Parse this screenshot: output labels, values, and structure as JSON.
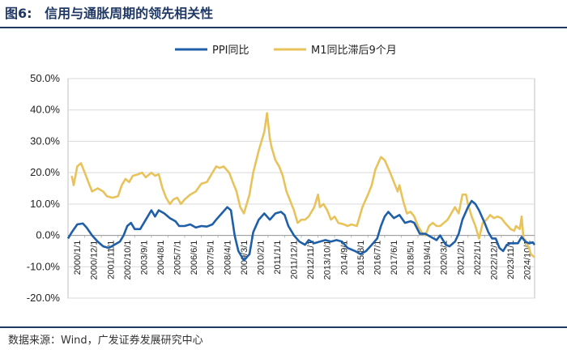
{
  "figure": {
    "number": "图6:",
    "title": "信用与通胀周期的领先相关性",
    "source": "数据来源：Wind，广发证券发展研究中心"
  },
  "colors": {
    "ppi": "#1f5fa8",
    "m1": "#e8c35c",
    "grid": "#d9d9d9",
    "axis": "#bfbfbf"
  },
  "chart_data": {
    "type": "line",
    "title": "信用与通胀周期的领先相关性",
    "ylim": [
      -20,
      50
    ],
    "yticks": [
      -20,
      -10,
      0,
      10,
      20,
      30,
      40,
      50
    ],
    "ytick_labels": [
      "-20.0%",
      "-10.0%",
      "0.0%",
      "10.0%",
      "20.0%",
      "30.0%",
      "40.0%",
      "50.0%"
    ],
    "x_range": [
      2000.0,
      2025.2
    ],
    "xtick_labels": [
      "2000/1/1",
      "2000/12/1",
      "2001/11/1",
      "2002/10/1",
      "2003/9/1",
      "2004/8/1",
      "2005/7/1",
      "2006/6/1",
      "2007/5/1",
      "2008/4/1",
      "2009/3/1",
      "2010/2/1",
      "2011/1/1",
      "2011/12/1",
      "2012/11/1",
      "2013/10/1",
      "2014/9/1",
      "2015/8/1",
      "2016/7/1",
      "2017/6/1",
      "2018/5/1",
      "2019/4/1",
      "2020/3/1",
      "2021/2/1",
      "2022/1/1",
      "2022/12/1",
      "2023/11/1",
      "2024/10/1"
    ],
    "legend": {
      "position": "top-center"
    },
    "series": [
      {
        "name": "PPI同比",
        "points": [
          [
            2000.0,
            -1
          ],
          [
            2000.2,
            1
          ],
          [
            2000.5,
            3.5
          ],
          [
            2000.8,
            3.8
          ],
          [
            2001.0,
            2.5
          ],
          [
            2001.3,
            0
          ],
          [
            2001.6,
            -2
          ],
          [
            2001.9,
            -3.5
          ],
          [
            2002.2,
            -4
          ],
          [
            2002.5,
            -3
          ],
          [
            2002.8,
            -2
          ],
          [
            2003.0,
            0
          ],
          [
            2003.2,
            3
          ],
          [
            2003.4,
            4
          ],
          [
            2003.6,
            2
          ],
          [
            2003.9,
            2
          ],
          [
            2004.2,
            5
          ],
          [
            2004.5,
            8
          ],
          [
            2004.7,
            6
          ],
          [
            2004.9,
            8
          ],
          [
            2005.2,
            7
          ],
          [
            2005.5,
            5.5
          ],
          [
            2005.8,
            4.5
          ],
          [
            2006.0,
            3
          ],
          [
            2006.3,
            3
          ],
          [
            2006.6,
            3.5
          ],
          [
            2006.9,
            2.5
          ],
          [
            2007.2,
            3
          ],
          [
            2007.5,
            2.8
          ],
          [
            2007.8,
            3.5
          ],
          [
            2008.0,
            5
          ],
          [
            2008.3,
            7
          ],
          [
            2008.6,
            9
          ],
          [
            2008.8,
            8
          ],
          [
            2009.0,
            0
          ],
          [
            2009.2,
            -5
          ],
          [
            2009.5,
            -8
          ],
          [
            2009.8,
            -6
          ],
          [
            2010.0,
            1
          ],
          [
            2010.3,
            5
          ],
          [
            2010.6,
            7
          ],
          [
            2010.9,
            5
          ],
          [
            2011.2,
            7
          ],
          [
            2011.5,
            7.5
          ],
          [
            2011.7,
            6.5
          ],
          [
            2011.9,
            3
          ],
          [
            2012.2,
            0
          ],
          [
            2012.5,
            -2
          ],
          [
            2012.8,
            -3
          ],
          [
            2013.0,
            -1.5
          ],
          [
            2013.3,
            -2.5
          ],
          [
            2013.6,
            -2
          ],
          [
            2013.9,
            -1.5
          ],
          [
            2014.2,
            -2
          ],
          [
            2014.5,
            -1.5
          ],
          [
            2014.8,
            -2
          ],
          [
            2015.1,
            -4
          ],
          [
            2015.5,
            -5
          ],
          [
            2015.8,
            -6
          ],
          [
            2016.1,
            -5
          ],
          [
            2016.4,
            -3
          ],
          [
            2016.7,
            -1
          ],
          [
            2016.9,
            3
          ],
          [
            2017.1,
            6
          ],
          [
            2017.3,
            7.5
          ],
          [
            2017.6,
            5.5
          ],
          [
            2017.9,
            6.5
          ],
          [
            2018.2,
            4
          ],
          [
            2018.5,
            4.5
          ],
          [
            2018.7,
            4
          ],
          [
            2019.0,
            0.5
          ],
          [
            2019.3,
            0.5
          ],
          [
            2019.6,
            -0.5
          ],
          [
            2019.9,
            -1.5
          ],
          [
            2020.1,
            0
          ],
          [
            2020.4,
            -3
          ],
          [
            2020.6,
            -3.5
          ],
          [
            2020.9,
            -2
          ],
          [
            2021.1,
            0.5
          ],
          [
            2021.3,
            5
          ],
          [
            2021.6,
            9
          ],
          [
            2021.8,
            11
          ],
          [
            2022.0,
            10
          ],
          [
            2022.2,
            8
          ],
          [
            2022.5,
            4
          ],
          [
            2022.7,
            1
          ],
          [
            2022.9,
            -1
          ],
          [
            2023.1,
            -1
          ],
          [
            2023.3,
            -4
          ],
          [
            2023.5,
            -5
          ],
          [
            2023.7,
            -3
          ],
          [
            2023.9,
            -2.5
          ],
          [
            2024.1,
            -2.5
          ],
          [
            2024.3,
            -2.5
          ],
          [
            2024.5,
            -0.5
          ],
          [
            2024.7,
            -2
          ],
          [
            2024.9,
            -2.5
          ],
          [
            2025.1,
            -2.2
          ],
          [
            2025.2,
            -3
          ]
        ]
      },
      {
        "name": "M1同比滞后9个月",
        "points": [
          [
            2000.2,
            19
          ],
          [
            2000.3,
            16
          ],
          [
            2000.5,
            22
          ],
          [
            2000.7,
            23
          ],
          [
            2000.9,
            20
          ],
          [
            2001.1,
            17
          ],
          [
            2001.3,
            14
          ],
          [
            2001.6,
            15
          ],
          [
            2001.9,
            14
          ],
          [
            2002.1,
            12.5
          ],
          [
            2002.4,
            12
          ],
          [
            2002.7,
            12.5
          ],
          [
            2002.9,
            16
          ],
          [
            2003.1,
            18
          ],
          [
            2003.3,
            17
          ],
          [
            2003.5,
            19
          ],
          [
            2003.8,
            19.5
          ],
          [
            2004.0,
            20
          ],
          [
            2004.2,
            18.5
          ],
          [
            2004.5,
            20
          ],
          [
            2004.7,
            19
          ],
          [
            2004.9,
            19.5
          ],
          [
            2005.1,
            15
          ],
          [
            2005.3,
            12
          ],
          [
            2005.5,
            10
          ],
          [
            2005.7,
            11.5
          ],
          [
            2005.9,
            12
          ],
          [
            2006.1,
            10
          ],
          [
            2006.3,
            11.5
          ],
          [
            2006.6,
            13
          ],
          [
            2006.9,
            14
          ],
          [
            2007.2,
            16.5
          ],
          [
            2007.5,
            17
          ],
          [
            2007.8,
            20
          ],
          [
            2008.0,
            22
          ],
          [
            2008.2,
            21.5
          ],
          [
            2008.4,
            22
          ],
          [
            2008.7,
            20
          ],
          [
            2008.9,
            17
          ],
          [
            2009.1,
            14
          ],
          [
            2009.3,
            9
          ],
          [
            2009.5,
            7
          ],
          [
            2009.8,
            13
          ],
          [
            2010.0,
            20
          ],
          [
            2010.3,
            27
          ],
          [
            2010.6,
            33
          ],
          [
            2010.75,
            39
          ],
          [
            2010.9,
            31
          ],
          [
            2011.0,
            28
          ],
          [
            2011.2,
            24
          ],
          [
            2011.4,
            22
          ],
          [
            2011.6,
            19
          ],
          [
            2011.8,
            14
          ],
          [
            2012.0,
            11
          ],
          [
            2012.2,
            8
          ],
          [
            2012.4,
            4
          ],
          [
            2012.6,
            5
          ],
          [
            2012.8,
            5
          ],
          [
            2013.0,
            6
          ],
          [
            2013.3,
            9
          ],
          [
            2013.5,
            13
          ],
          [
            2013.6,
            9
          ],
          [
            2013.8,
            10
          ],
          [
            2014.0,
            8
          ],
          [
            2014.2,
            5
          ],
          [
            2014.4,
            6
          ],
          [
            2014.6,
            4
          ],
          [
            2014.9,
            3.5
          ],
          [
            2015.1,
            3
          ],
          [
            2015.3,
            3.5
          ],
          [
            2015.6,
            3
          ],
          [
            2015.9,
            9
          ],
          [
            2016.2,
            13
          ],
          [
            2016.4,
            16
          ],
          [
            2016.6,
            21
          ],
          [
            2016.9,
            25
          ],
          [
            2017.1,
            24
          ],
          [
            2017.4,
            20
          ],
          [
            2017.6,
            17
          ],
          [
            2017.8,
            14
          ],
          [
            2017.9,
            16
          ],
          [
            2018.1,
            11
          ],
          [
            2018.3,
            7
          ],
          [
            2018.5,
            7.5
          ],
          [
            2018.7,
            6
          ],
          [
            2018.9,
            3
          ],
          [
            2019.1,
            1
          ],
          [
            2019.3,
            0
          ],
          [
            2019.5,
            3
          ],
          [
            2019.7,
            4
          ],
          [
            2019.9,
            3
          ],
          [
            2020.1,
            3
          ],
          [
            2020.3,
            4
          ],
          [
            2020.5,
            5
          ],
          [
            2020.7,
            7
          ],
          [
            2020.9,
            9
          ],
          [
            2021.1,
            7
          ],
          [
            2021.3,
            13
          ],
          [
            2021.5,
            13
          ],
          [
            2021.6,
            10
          ],
          [
            2021.8,
            6
          ],
          [
            2022.0,
            3
          ],
          [
            2022.2,
            -1
          ],
          [
            2022.4,
            4
          ],
          [
            2022.6,
            5
          ],
          [
            2022.8,
            6.5
          ],
          [
            2023.0,
            5.5
          ],
          [
            2023.2,
            6
          ],
          [
            2023.4,
            5.5
          ],
          [
            2023.6,
            4
          ],
          [
            2023.9,
            2
          ],
          [
            2024.1,
            1.5
          ],
          [
            2024.2,
            3
          ],
          [
            2024.4,
            2
          ],
          [
            2024.5,
            6
          ],
          [
            2024.6,
            -1
          ],
          [
            2024.7,
            -1.5
          ],
          [
            2024.8,
            -3
          ],
          [
            2024.9,
            -4
          ],
          [
            2025.0,
            -6
          ],
          [
            2025.1,
            -6.5
          ],
          [
            2025.2,
            -7
          ]
        ]
      }
    ]
  }
}
